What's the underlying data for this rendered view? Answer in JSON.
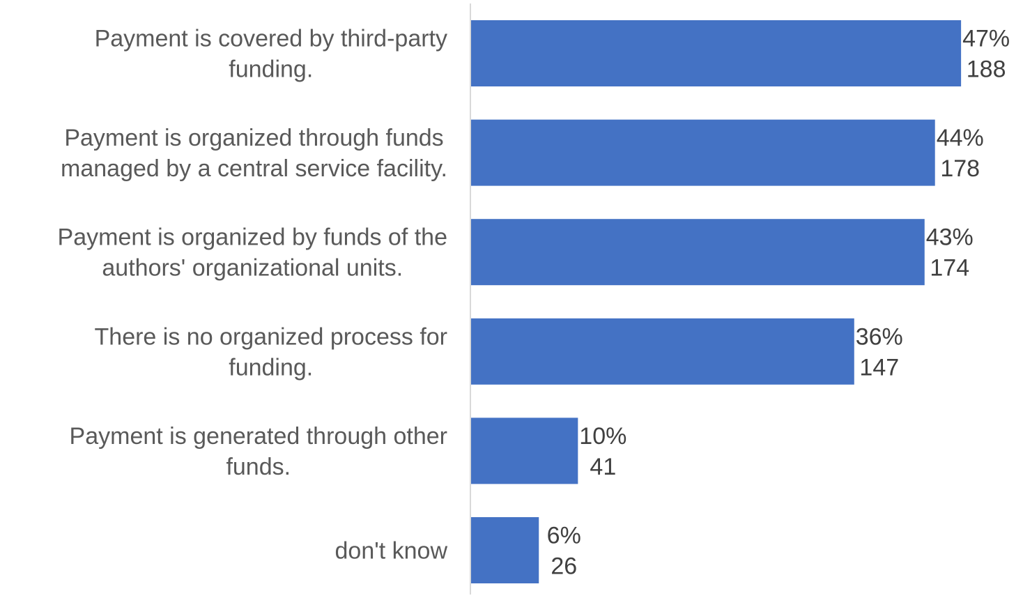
{
  "chart_data": {
    "type": "bar",
    "orientation": "horizontal",
    "categories": [
      [
        "Payment is covered by third-party",
        "funding."
      ],
      [
        "Payment is organized through funds",
        "managed by a central service facility."
      ],
      [
        "Payment is organized by funds of the",
        "authors' organizational units."
      ],
      [
        "There is no organized process for",
        "funding."
      ],
      [
        "Payment is generated through other",
        "funds."
      ],
      [
        "don't know"
      ]
    ],
    "series": [
      {
        "values": [
          188,
          178,
          174,
          147,
          41,
          26
        ],
        "percent_labels": [
          "47%",
          "44%",
          "43%",
          "36%",
          "10%",
          "6%"
        ],
        "count_labels": [
          "188",
          "178",
          "174",
          "147",
          "41",
          "26"
        ],
        "color": "#4472C4"
      }
    ],
    "xlim": [
      0,
      200
    ],
    "grid": false,
    "legend": "none",
    "axis_color": "#D9D9D9",
    "category_label_color": "#595959",
    "data_label_color": "#404040"
  }
}
